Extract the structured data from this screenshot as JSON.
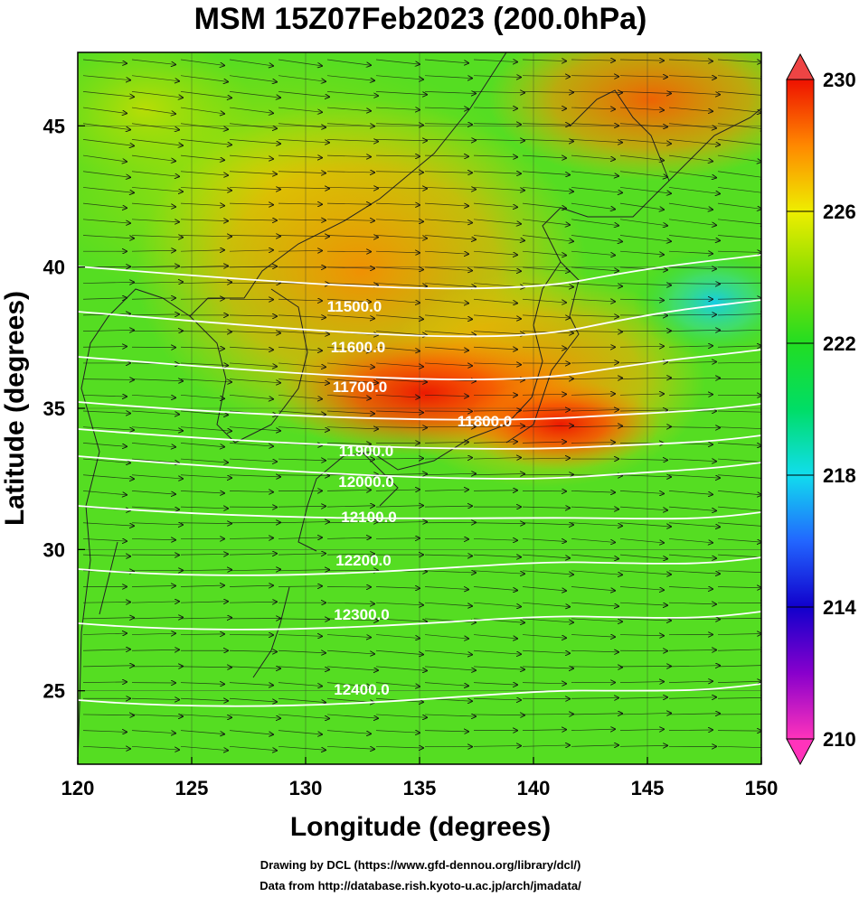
{
  "title": "MSM 15Z07Feb2023 (200.0hPa)",
  "x_axis": {
    "label": "Longitude (degrees)",
    "min": 120,
    "max": 150,
    "ticks": [
      "120",
      "125",
      "130",
      "135",
      "140",
      "145",
      "150"
    ]
  },
  "y_axis": {
    "label": "Latitude  (degrees)",
    "min": 22.4,
    "max": 47.6,
    "ticks": [
      "25",
      "30",
      "35",
      "40",
      "45"
    ]
  },
  "colorbar": {
    "min": 210,
    "max": 230,
    "ticks": [
      "230",
      "226",
      "222",
      "218",
      "214",
      "210"
    ],
    "colors": {
      "210": "#ff33bb",
      "212": "#8800cc",
      "214": "#1100cc",
      "216": "#2266ff",
      "218": "#11ddee",
      "220": "#00dd66",
      "222": "#22dd22",
      "224": "#88dd00",
      "226": "#eeee00",
      "228": "#ff8800",
      "230": "#ee1100"
    }
  },
  "contours": [
    {
      "label": "11500.0"
    },
    {
      "label": "11600.0"
    },
    {
      "label": "11700.0"
    },
    {
      "label": "11800.0"
    },
    {
      "label": "11900.0"
    },
    {
      "label": "12000.0"
    },
    {
      "label": "12100.0"
    },
    {
      "label": "12200.0"
    },
    {
      "label": "12300.0"
    },
    {
      "label": "12400.0"
    }
  ],
  "credits": [
    "Drawing by DCL (https://www.gfd-dennou.org/library/dcl/)",
    "Data from http://database.rish.kyoto-u.ac.jp/arch/jmadata/"
  ]
}
